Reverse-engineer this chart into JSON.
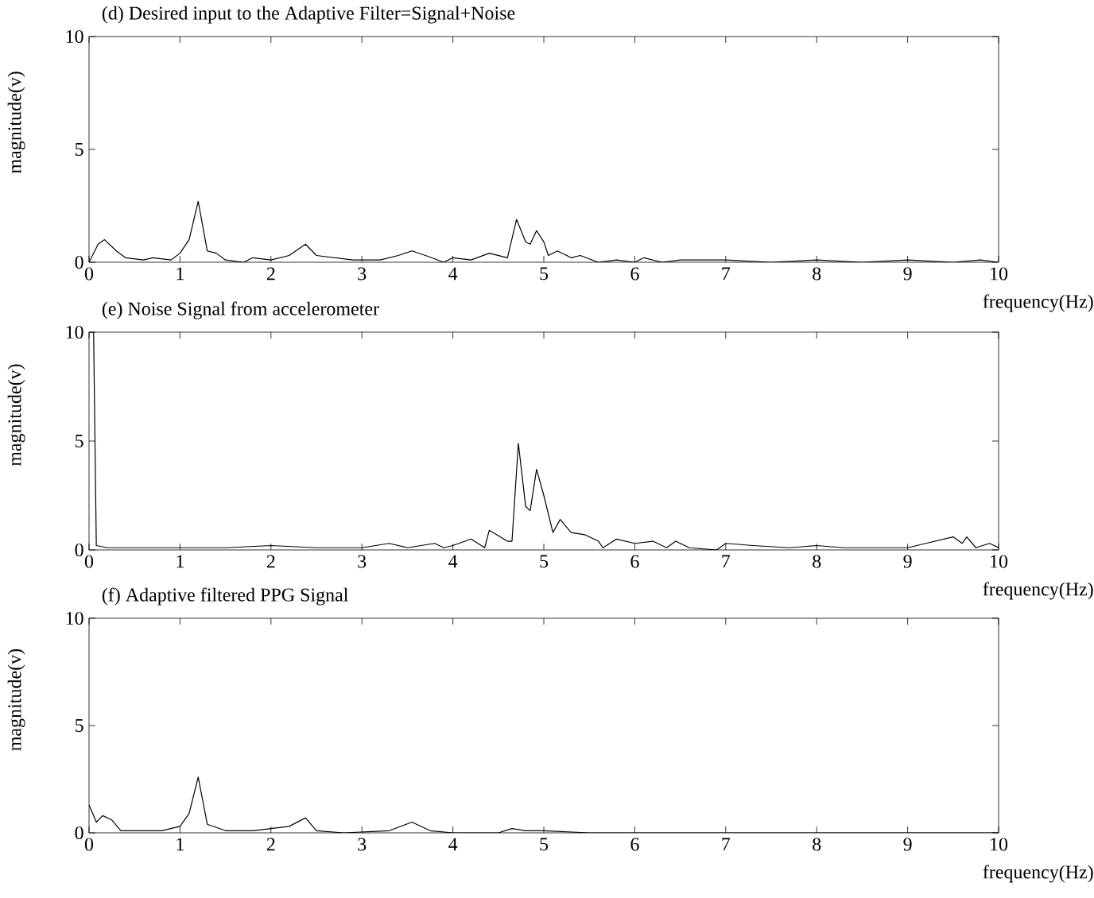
{
  "chart_data": [
    {
      "type": "line",
      "title": "(d) Desired input to the Adaptive Filter=Signal+Noise",
      "xlabel": "frequency(Hz)",
      "ylabel": "magnitude(v)",
      "color": "#000000",
      "xlim": [
        0,
        10
      ],
      "ylim": [
        0,
        10
      ],
      "xticks": [
        0,
        1,
        2,
        3,
        4,
        5,
        6,
        7,
        8,
        9,
        10
      ],
      "yticks": [
        0,
        5,
        10
      ],
      "grid": false,
      "x": [
        0,
        0.1,
        0.17,
        0.3,
        0.4,
        0.6,
        0.7,
        0.9,
        1.0,
        1.1,
        1.2,
        1.3,
        1.4,
        1.5,
        1.7,
        1.8,
        2.0,
        2.2,
        2.38,
        2.5,
        2.7,
        2.9,
        3.2,
        3.4,
        3.55,
        3.7,
        3.9,
        4.0,
        4.2,
        4.4,
        4.6,
        4.7,
        4.8,
        4.85,
        4.92,
        5.0,
        5.05,
        5.15,
        5.3,
        5.4,
        5.6,
        5.8,
        6.0,
        6.1,
        6.3,
        6.5,
        7.0,
        7.5,
        8.0,
        8.5,
        9.0,
        9.5,
        9.8,
        10
      ],
      "values": [
        0,
        0.8,
        1.0,
        0.5,
        0.2,
        0.1,
        0.2,
        0.1,
        0.4,
        1.0,
        2.7,
        0.5,
        0.4,
        0.1,
        0.0,
        0.2,
        0.1,
        0.3,
        0.8,
        0.3,
        0.2,
        0.1,
        0.1,
        0.3,
        0.5,
        0.3,
        0.0,
        0.2,
        0.1,
        0.4,
        0.2,
        1.9,
        0.9,
        0.8,
        1.4,
        0.9,
        0.3,
        0.5,
        0.2,
        0.3,
        0.0,
        0.1,
        0.0,
        0.2,
        0.0,
        0.1,
        0.1,
        0.0,
        0.1,
        0.0,
        0.1,
        0.0,
        0.1,
        0.0
      ]
    },
    {
      "type": "line",
      "title": "(e) Noise Signal from accelerometer",
      "xlabel": "frequency(Hz)",
      "ylabel": "magnitude(v)",
      "color": "#000000",
      "xlim": [
        0,
        10
      ],
      "ylim": [
        0,
        10
      ],
      "xticks": [
        0,
        1,
        2,
        3,
        4,
        5,
        6,
        7,
        8,
        9,
        10
      ],
      "yticks": [
        0,
        5,
        10
      ],
      "grid": false,
      "x": [
        0,
        0.05,
        0.08,
        0.2,
        0.5,
        1.0,
        1.5,
        2.0,
        2.5,
        3.0,
        3.3,
        3.5,
        3.8,
        3.9,
        4.0,
        4.2,
        4.35,
        4.4,
        4.6,
        4.65,
        4.72,
        4.8,
        4.85,
        4.92,
        5.0,
        5.1,
        5.18,
        5.3,
        5.45,
        5.6,
        5.65,
        5.8,
        6.0,
        6.2,
        6.35,
        6.45,
        6.6,
        6.9,
        7.0,
        7.3,
        7.7,
        8.0,
        8.3,
        8.6,
        9.0,
        9.2,
        9.5,
        9.6,
        9.65,
        9.75,
        9.9,
        10
      ],
      "values": [
        10,
        10,
        0.2,
        0.1,
        0.1,
        0.1,
        0.1,
        0.2,
        0.1,
        0.1,
        0.3,
        0.1,
        0.3,
        0.1,
        0.2,
        0.5,
        0.1,
        0.9,
        0.4,
        0.4,
        4.9,
        2.0,
        1.8,
        3.7,
        2.5,
        0.8,
        1.4,
        0.8,
        0.7,
        0.4,
        0.1,
        0.5,
        0.3,
        0.4,
        0.1,
        0.4,
        0.1,
        0.0,
        0.3,
        0.2,
        0.1,
        0.2,
        0.1,
        0.1,
        0.1,
        0.3,
        0.6,
        0.3,
        0.6,
        0.1,
        0.3,
        0.1
      ]
    },
    {
      "type": "line",
      "title": "(f) Adaptive filtered PPG Signal",
      "xlabel": "frequency(Hz)",
      "ylabel": "magnitude(v)",
      "color": "#000000",
      "xlim": [
        0,
        10
      ],
      "ylim": [
        0,
        10
      ],
      "xticks": [
        0,
        1,
        2,
        3,
        4,
        5,
        6,
        7,
        8,
        9,
        10
      ],
      "yticks": [
        0,
        5,
        10
      ],
      "grid": false,
      "x": [
        0,
        0.08,
        0.15,
        0.25,
        0.35,
        0.6,
        0.8,
        1.0,
        1.1,
        1.2,
        1.3,
        1.5,
        1.8,
        2.0,
        2.2,
        2.38,
        2.5,
        2.8,
        3.3,
        3.55,
        3.75,
        4.0,
        4.5,
        4.65,
        4.8,
        5.0,
        5.5,
        10
      ],
      "values": [
        1.3,
        0.5,
        0.8,
        0.6,
        0.1,
        0.1,
        0.1,
        0.3,
        0.9,
        2.6,
        0.4,
        0.1,
        0.1,
        0.2,
        0.3,
        0.7,
        0.1,
        0.0,
        0.1,
        0.5,
        0.1,
        0.0,
        0.0,
        0.2,
        0.1,
        0.1,
        0.0,
        0.0
      ]
    }
  ]
}
